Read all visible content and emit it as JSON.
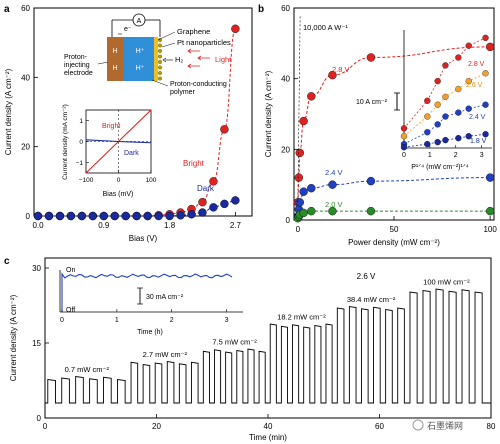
{
  "panels": {
    "a": {
      "letter": "a",
      "xlabel": "Bias (V)",
      "ylabel": "Current density (A cm⁻²)",
      "xticks": [
        "0.0",
        "0.9",
        "1.8",
        "2.7"
      ],
      "yticks": [
        "0",
        "20",
        "40",
        "60"
      ]
    },
    "b": {
      "letter": "b",
      "xlabel": "Power density (mW cm⁻²)",
      "ylabel": "Current density (A cm⁻²)",
      "xticks": [
        "0",
        "50",
        "100"
      ],
      "yticks": [
        "0",
        "20",
        "40",
        "60"
      ]
    },
    "c": {
      "letter": "c",
      "xlabel": "Time (min)",
      "ylabel": "Current density (A cm⁻²)",
      "xticks": [
        "0",
        "20",
        "40",
        "60",
        "80"
      ],
      "yticks": [
        "0",
        "15",
        "30"
      ]
    }
  },
  "schematic": {
    "ammeter": "A",
    "electron": "e⁻",
    "graphene": "Graphene",
    "pt": "Pt nanoparticles",
    "h2": "H₂",
    "light": "Light",
    "electrode_line1": "Proton-",
    "electrode_line2": "injecting",
    "electrode_line3": "electrode",
    "polymer_line1": "Proton-conducting",
    "polymer_line2": "polymer",
    "h_left": "H",
    "h_plus": "H⁺"
  },
  "inset_a": {
    "ylabel": "Current density (mA cm⁻²)",
    "xlabel": "Bias (mV)",
    "xticks": [
      "−100",
      "0",
      "100"
    ],
    "yticks": [
      "−1",
      "0",
      "1"
    ],
    "bright": "Bright",
    "dark": "Dark"
  },
  "labels_a": {
    "bright": "Bright",
    "dark": "Dark"
  },
  "labels_b": {
    "top": "10,000 A W⁻¹",
    "v28": "2.8 V",
    "v24": "2.4 V",
    "v20": "2.0 V",
    "scalebar": "10 A cm⁻²"
  },
  "inset_b": {
    "xlabel": "P¹ᐟ⁴ (mW cm⁻²)¹ᐟ⁴",
    "xticks": [
      "0",
      "1",
      "2",
      "3"
    ],
    "v28": "2.8 V",
    "v26": "2.6 V",
    "v24": "2.4 V",
    "v18": "1.8 V"
  },
  "labels_c": {
    "voltage": "2.6 V",
    "p1": "0.7 mW cm⁻²",
    "p2": "2.7 mW cm⁻²",
    "p3": "7.5 mW cm⁻²",
    "p4": "18.2 mW cm⁻²",
    "p5": "38.4 mW cm⁻²",
    "p6": "100 mW cm⁻²"
  },
  "inset_c": {
    "on": "On",
    "off": "Off",
    "scalebar": "30 mA cm⁻²",
    "xlabel": "Time (h)",
    "xticks": [
      "0",
      "1",
      "2",
      "3"
    ]
  },
  "watermark": "石墨烯网",
  "colors": {
    "red": "#dd2222",
    "navy": "#1a2a9a",
    "orange": "#f0a030",
    "green": "#2a8a2a",
    "blue": "#2040c0",
    "electrode": "#b06a30",
    "polymer": "#2f8fd8",
    "graphene": "#f0c020"
  },
  "chart_data": [
    {
      "panel": "a",
      "type": "scatter",
      "xlabel": "Bias (V)",
      "ylabel": "Current density (A cm⁻²)",
      "xlim": [
        0,
        2.9
      ],
      "ylim": [
        0,
        60
      ],
      "series": [
        {
          "name": "Bright",
          "color": "red",
          "x": [
            0,
            0.15,
            0.3,
            0.45,
            0.6,
            0.75,
            0.9,
            1.05,
            1.2,
            1.35,
            1.5,
            1.65,
            1.8,
            1.95,
            2.1,
            2.25,
            2.4,
            2.55,
            2.7
          ],
          "y": [
            0,
            0,
            0,
            0,
            0,
            0,
            0,
            0,
            0,
            0,
            0,
            0.2,
            0.5,
            1,
            2,
            4,
            10,
            25,
            54
          ]
        },
        {
          "name": "Dark",
          "color": "navy",
          "x": [
            0,
            0.15,
            0.3,
            0.45,
            0.6,
            0.75,
            0.9,
            1.05,
            1.2,
            1.35,
            1.5,
            1.65,
            1.8,
            1.95,
            2.1,
            2.25,
            2.4,
            2.55,
            2.7
          ],
          "y": [
            0,
            0,
            0,
            0,
            0,
            0,
            0,
            0,
            0,
            0,
            0,
            0,
            0,
            0.2,
            0.5,
            1,
            2.5,
            3.5,
            4.5
          ]
        }
      ]
    },
    {
      "panel": "a-inset",
      "type": "line",
      "xlim": [
        -100,
        100
      ],
      "ylim": [
        -1.5,
        1.5
      ],
      "series": [
        {
          "name": "Bright",
          "color": "red",
          "x": [
            -100,
            0,
            100
          ],
          "y": [
            -1.6,
            0,
            1.6
          ]
        },
        {
          "name": "Dark",
          "color": "navy",
          "x": [
            -100,
            0,
            100
          ],
          "y": [
            0.08,
            0,
            -0.06
          ]
        }
      ]
    },
    {
      "panel": "b",
      "type": "scatter",
      "xlabel": "Power density (mW cm⁻²)",
      "ylabel": "Current density (A cm⁻²)",
      "xlim": [
        -2,
        102
      ],
      "ylim": [
        0,
        60
      ],
      "series": [
        {
          "name": "2.8 V",
          "color": "red",
          "x": [
            0,
            0.5,
            1,
            3,
            7,
            18,
            38,
            100
          ],
          "y": [
            5,
            12,
            19,
            28,
            35,
            41,
            46,
            49
          ]
        },
        {
          "name": "2.4 V",
          "color": "blue",
          "x": [
            0,
            0.5,
            1,
            3,
            7,
            18,
            38,
            100
          ],
          "y": [
            1,
            3,
            5,
            8,
            9,
            10,
            11,
            12
          ]
        },
        {
          "name": "2.0 V",
          "color": "green",
          "x": [
            0,
            0.5,
            1,
            3,
            7,
            18,
            38,
            100
          ],
          "y": [
            0.5,
            1,
            1.5,
            2,
            2.5,
            2.5,
            2.5,
            2.5
          ]
        }
      ]
    },
    {
      "panel": "b-inset",
      "type": "scatter",
      "xlabel": "P¹ᐟ⁴ (mW cm⁻²)¹ᐟ⁴",
      "xlim": [
        0,
        3.4
      ],
      "ylim": [
        0,
        30
      ],
      "series": [
        {
          "name": "2.8 V",
          "color": "red",
          "x": [
            0,
            0.9,
            1.3,
            1.6,
            2.1,
            2.5,
            3.15
          ],
          "y": [
            5,
            12,
            17,
            21,
            23,
            26,
            28
          ]
        },
        {
          "name": "2.6 V",
          "color": "orange",
          "x": [
            0,
            0.9,
            1.3,
            1.6,
            2.1,
            2.5,
            3.15
          ],
          "y": [
            3,
            8,
            11,
            13,
            15,
            17,
            19
          ]
        },
        {
          "name": "2.4 V",
          "color": "blue",
          "x": [
            0,
            0.9,
            1.3,
            1.6,
            2.1,
            2.5,
            3.15
          ],
          "y": [
            1,
            4,
            6,
            8,
            9,
            10,
            11
          ]
        },
        {
          "name": "1.8 V",
          "color": "navy",
          "x": [
            0,
            0.9,
            1.3,
            1.6,
            2.1,
            2.5,
            3.15
          ],
          "y": [
            0.2,
            1,
            1.5,
            2,
            2.5,
            3,
            3.5
          ]
        }
      ]
    },
    {
      "panel": "c",
      "type": "line",
      "xlabel": "Time (min)",
      "ylabel": "Current density (A cm⁻²)",
      "xlim": [
        0,
        80
      ],
      "ylim": [
        0,
        32
      ],
      "baseline": 3,
      "segments": [
        {
          "label": "0.7 mW cm⁻²",
          "start": 0,
          "end": 15,
          "on": 8
        },
        {
          "label": "2.7 mW cm⁻²",
          "start": 15,
          "end": 28,
          "on": 11
        },
        {
          "label": "7.5 mW cm⁻²",
          "start": 28,
          "end": 40,
          "on": 13.5
        },
        {
          "label": "18.2 mW cm⁻²",
          "start": 40,
          "end": 52,
          "on": 18.5
        },
        {
          "label": "38.4 mW cm⁻²",
          "start": 52,
          "end": 65,
          "on": 22
        },
        {
          "label": "100 mW cm⁻²",
          "start": 65,
          "end": 79,
          "on": 25.5
        }
      ]
    },
    {
      "panel": "c-inset",
      "type": "line",
      "xlabel": "Time (h)",
      "xlim": [
        0,
        3.3
      ],
      "level_on_mA": 30
    }
  ]
}
